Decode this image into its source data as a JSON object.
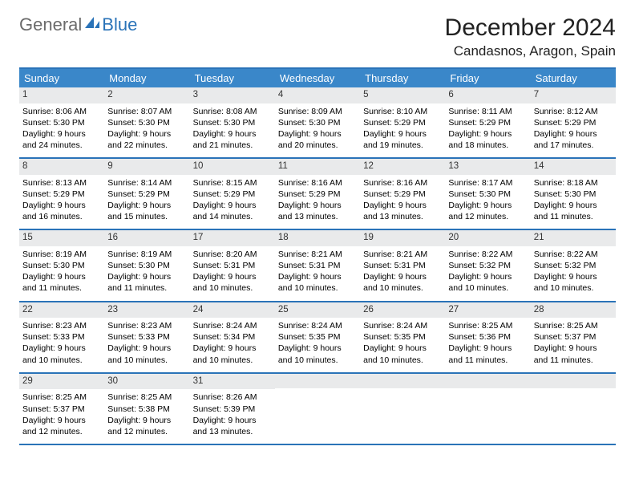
{
  "brand": {
    "part1": "General",
    "part2": "Blue",
    "icon_color": "#2a73b8"
  },
  "title": "December 2024",
  "location": "Candasnos, Aragon, Spain",
  "colors": {
    "header_bg": "#3a87c9",
    "header_text": "#ffffff",
    "rule": "#2a73b8",
    "daynum_bg": "#e9eaeb",
    "logo_gray": "#6b6b6b",
    "logo_blue": "#2a73b8"
  },
  "weekdays": [
    "Sunday",
    "Monday",
    "Tuesday",
    "Wednesday",
    "Thursday",
    "Friday",
    "Saturday"
  ],
  "weeks": [
    [
      {
        "n": "1",
        "sunrise": "Sunrise: 8:06 AM",
        "sunset": "Sunset: 5:30 PM",
        "daylight": "Daylight: 9 hours and 24 minutes."
      },
      {
        "n": "2",
        "sunrise": "Sunrise: 8:07 AM",
        "sunset": "Sunset: 5:30 PM",
        "daylight": "Daylight: 9 hours and 22 minutes."
      },
      {
        "n": "3",
        "sunrise": "Sunrise: 8:08 AM",
        "sunset": "Sunset: 5:30 PM",
        "daylight": "Daylight: 9 hours and 21 minutes."
      },
      {
        "n": "4",
        "sunrise": "Sunrise: 8:09 AM",
        "sunset": "Sunset: 5:30 PM",
        "daylight": "Daylight: 9 hours and 20 minutes."
      },
      {
        "n": "5",
        "sunrise": "Sunrise: 8:10 AM",
        "sunset": "Sunset: 5:29 PM",
        "daylight": "Daylight: 9 hours and 19 minutes."
      },
      {
        "n": "6",
        "sunrise": "Sunrise: 8:11 AM",
        "sunset": "Sunset: 5:29 PM",
        "daylight": "Daylight: 9 hours and 18 minutes."
      },
      {
        "n": "7",
        "sunrise": "Sunrise: 8:12 AM",
        "sunset": "Sunset: 5:29 PM",
        "daylight": "Daylight: 9 hours and 17 minutes."
      }
    ],
    [
      {
        "n": "8",
        "sunrise": "Sunrise: 8:13 AM",
        "sunset": "Sunset: 5:29 PM",
        "daylight": "Daylight: 9 hours and 16 minutes."
      },
      {
        "n": "9",
        "sunrise": "Sunrise: 8:14 AM",
        "sunset": "Sunset: 5:29 PM",
        "daylight": "Daylight: 9 hours and 15 minutes."
      },
      {
        "n": "10",
        "sunrise": "Sunrise: 8:15 AM",
        "sunset": "Sunset: 5:29 PM",
        "daylight": "Daylight: 9 hours and 14 minutes."
      },
      {
        "n": "11",
        "sunrise": "Sunrise: 8:16 AM",
        "sunset": "Sunset: 5:29 PM",
        "daylight": "Daylight: 9 hours and 13 minutes."
      },
      {
        "n": "12",
        "sunrise": "Sunrise: 8:16 AM",
        "sunset": "Sunset: 5:29 PM",
        "daylight": "Daylight: 9 hours and 13 minutes."
      },
      {
        "n": "13",
        "sunrise": "Sunrise: 8:17 AM",
        "sunset": "Sunset: 5:30 PM",
        "daylight": "Daylight: 9 hours and 12 minutes."
      },
      {
        "n": "14",
        "sunrise": "Sunrise: 8:18 AM",
        "sunset": "Sunset: 5:30 PM",
        "daylight": "Daylight: 9 hours and 11 minutes."
      }
    ],
    [
      {
        "n": "15",
        "sunrise": "Sunrise: 8:19 AM",
        "sunset": "Sunset: 5:30 PM",
        "daylight": "Daylight: 9 hours and 11 minutes."
      },
      {
        "n": "16",
        "sunrise": "Sunrise: 8:19 AM",
        "sunset": "Sunset: 5:30 PM",
        "daylight": "Daylight: 9 hours and 11 minutes."
      },
      {
        "n": "17",
        "sunrise": "Sunrise: 8:20 AM",
        "sunset": "Sunset: 5:31 PM",
        "daylight": "Daylight: 9 hours and 10 minutes."
      },
      {
        "n": "18",
        "sunrise": "Sunrise: 8:21 AM",
        "sunset": "Sunset: 5:31 PM",
        "daylight": "Daylight: 9 hours and 10 minutes."
      },
      {
        "n": "19",
        "sunrise": "Sunrise: 8:21 AM",
        "sunset": "Sunset: 5:31 PM",
        "daylight": "Daylight: 9 hours and 10 minutes."
      },
      {
        "n": "20",
        "sunrise": "Sunrise: 8:22 AM",
        "sunset": "Sunset: 5:32 PM",
        "daylight": "Daylight: 9 hours and 10 minutes."
      },
      {
        "n": "21",
        "sunrise": "Sunrise: 8:22 AM",
        "sunset": "Sunset: 5:32 PM",
        "daylight": "Daylight: 9 hours and 10 minutes."
      }
    ],
    [
      {
        "n": "22",
        "sunrise": "Sunrise: 8:23 AM",
        "sunset": "Sunset: 5:33 PM",
        "daylight": "Daylight: 9 hours and 10 minutes."
      },
      {
        "n": "23",
        "sunrise": "Sunrise: 8:23 AM",
        "sunset": "Sunset: 5:33 PM",
        "daylight": "Daylight: 9 hours and 10 minutes."
      },
      {
        "n": "24",
        "sunrise": "Sunrise: 8:24 AM",
        "sunset": "Sunset: 5:34 PM",
        "daylight": "Daylight: 9 hours and 10 minutes."
      },
      {
        "n": "25",
        "sunrise": "Sunrise: 8:24 AM",
        "sunset": "Sunset: 5:35 PM",
        "daylight": "Daylight: 9 hours and 10 minutes."
      },
      {
        "n": "26",
        "sunrise": "Sunrise: 8:24 AM",
        "sunset": "Sunset: 5:35 PM",
        "daylight": "Daylight: 9 hours and 10 minutes."
      },
      {
        "n": "27",
        "sunrise": "Sunrise: 8:25 AM",
        "sunset": "Sunset: 5:36 PM",
        "daylight": "Daylight: 9 hours and 11 minutes."
      },
      {
        "n": "28",
        "sunrise": "Sunrise: 8:25 AM",
        "sunset": "Sunset: 5:37 PM",
        "daylight": "Daylight: 9 hours and 11 minutes."
      }
    ],
    [
      {
        "n": "29",
        "sunrise": "Sunrise: 8:25 AM",
        "sunset": "Sunset: 5:37 PM",
        "daylight": "Daylight: 9 hours and 12 minutes."
      },
      {
        "n": "30",
        "sunrise": "Sunrise: 8:25 AM",
        "sunset": "Sunset: 5:38 PM",
        "daylight": "Daylight: 9 hours and 12 minutes."
      },
      {
        "n": "31",
        "sunrise": "Sunrise: 8:26 AM",
        "sunset": "Sunset: 5:39 PM",
        "daylight": "Daylight: 9 hours and 13 minutes."
      },
      null,
      null,
      null,
      null
    ]
  ]
}
